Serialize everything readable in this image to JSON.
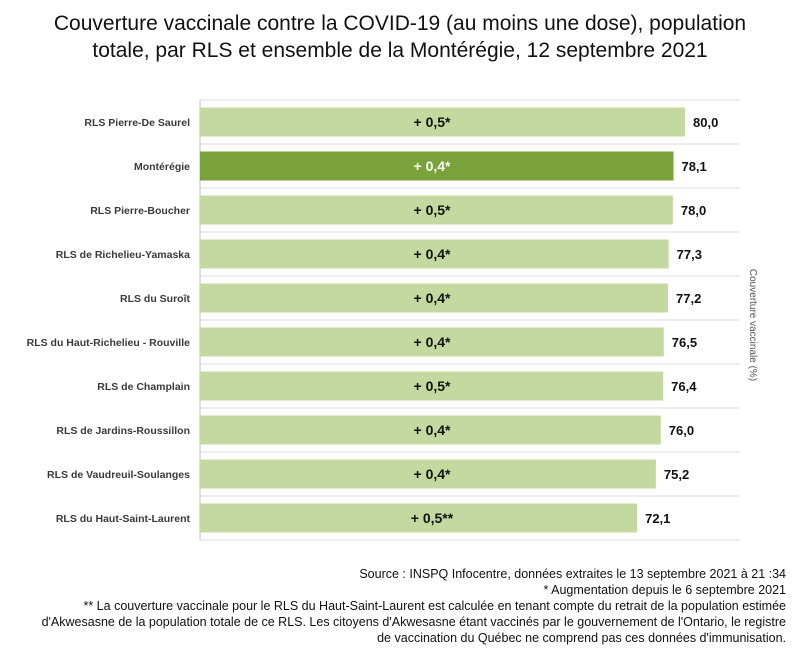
{
  "title_line1": "Couverture vaccinale contre la COVID-19 (au moins une dose), population",
  "title_line2": "totale, par RLS et ensemble de la Montérégie, 12 septembre 2021",
  "colors": {
    "bar": "#c4d9a0",
    "highlight": "#7aa23a",
    "grid": "#d9d9d9"
  },
  "chart_data": {
    "type": "bar",
    "orientation": "horizontal",
    "categories": [
      "RLS Pierre-De Saurel",
      "Montérégie",
      "RLS Pierre-Boucher",
      "RLS de Richelieu-Yamaska",
      "RLS du Suroît",
      "RLS du Haut-Richelieu - Rouville",
      "RLS de Champlain",
      "RLS de Jardins-Roussillon",
      "RLS de Vaudreuil-Soulanges",
      "RLS du Haut-Saint-Laurent"
    ],
    "values": [
      80.0,
      78.1,
      78.0,
      77.3,
      77.2,
      76.5,
      76.4,
      76.0,
      75.2,
      72.1
    ],
    "value_labels": [
      "80,0",
      "78,1",
      "78,0",
      "77,3",
      "77,2",
      "76,5",
      "76,4",
      "76,0",
      "75,2",
      "72,1"
    ],
    "increase_labels": [
      "+ 0,5*",
      "+ 0,4*",
      "+ 0,5*",
      "+ 0,4*",
      "+ 0,4*",
      "+ 0,4*",
      "+ 0,5*",
      "+ 0,4*",
      "+ 0,4*",
      "+ 0,5**"
    ],
    "highlight_category": "Montérégie",
    "ylabel": "Couverture vaccinale (%)",
    "xlim": [
      0,
      80
    ],
    "grid": true
  },
  "notes": {
    "source": "Source : INSPQ Infocentre, données extraites le 13 septembre 2021 à 21 :34",
    "footnote1": "* Augmentation depuis le 6 septembre 2021",
    "footnote2_line1": "** La couverture vaccinale pour le RLS du Haut-Saint-Laurent est calculée en tenant compte du retrait de la population estimée",
    "footnote2_line2": "d'Akwesasne de la population totale de ce RLS. Les citoyens d'Akwesasne étant vaccinés par le gouvernement de l'Ontario, le registre",
    "footnote2_line3": "de vaccination du Québec ne comprend pas ces données d'immunisation."
  }
}
